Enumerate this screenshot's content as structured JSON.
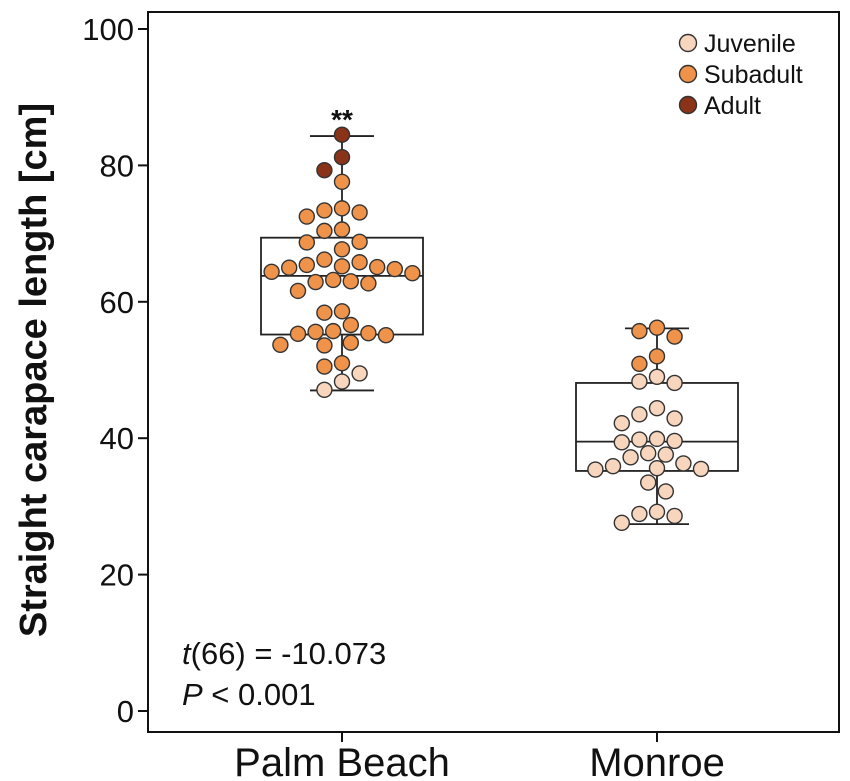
{
  "chart_data": {
    "type": "box",
    "ylabel": "Straight carapace length [cm]",
    "ylim": [
      0,
      100
    ],
    "yticks": [
      0,
      20,
      40,
      60,
      80,
      100
    ],
    "categories": [
      "Palm Beach",
      "Monroe"
    ],
    "stage_colors": {
      "Juvenile": "#f8d5bd",
      "Subadult": "#ef934a",
      "Adult": "#8a3318"
    },
    "legend": [
      {
        "label": "Juvenile",
        "stage": "Juvenile"
      },
      {
        "label": "Subadult",
        "stage": "Subadult"
      },
      {
        "label": "Adult",
        "stage": "Adult"
      }
    ],
    "boxes": [
      {
        "category": "Palm Beach",
        "whisker_low": 47.0,
        "q1": 55.2,
        "median": 63.8,
        "q3": 69.4,
        "whisker_high": 84.3,
        "significance": "**",
        "points": [
          {
            "y": 84.5,
            "stage": "Adult"
          },
          {
            "y": 81.2,
            "stage": "Adult"
          },
          {
            "y": 79.3,
            "stage": "Adult"
          },
          {
            "y": 77.6,
            "stage": "Subadult"
          },
          {
            "y": 73.7,
            "stage": "Subadult"
          },
          {
            "y": 73.4,
            "stage": "Subadult"
          },
          {
            "y": 73.1,
            "stage": "Subadult"
          },
          {
            "y": 72.5,
            "stage": "Subadult"
          },
          {
            "y": 70.6,
            "stage": "Subadult"
          },
          {
            "y": 70.4,
            "stage": "Subadult"
          },
          {
            "y": 68.8,
            "stage": "Subadult"
          },
          {
            "y": 68.7,
            "stage": "Subadult"
          },
          {
            "y": 67.7,
            "stage": "Subadult"
          },
          {
            "y": 66.2,
            "stage": "Subadult"
          },
          {
            "y": 65.8,
            "stage": "Subadult"
          },
          {
            "y": 65.4,
            "stage": "Subadult"
          },
          {
            "y": 65.2,
            "stage": "Subadult"
          },
          {
            "y": 65.1,
            "stage": "Subadult"
          },
          {
            "y": 65.0,
            "stage": "Subadult"
          },
          {
            "y": 64.8,
            "stage": "Subadult"
          },
          {
            "y": 64.4,
            "stage": "Subadult"
          },
          {
            "y": 64.2,
            "stage": "Subadult"
          },
          {
            "y": 63.2,
            "stage": "Subadult"
          },
          {
            "y": 63.0,
            "stage": "Subadult"
          },
          {
            "y": 62.9,
            "stage": "Subadult"
          },
          {
            "y": 62.7,
            "stage": "Subadult"
          },
          {
            "y": 61.6,
            "stage": "Subadult"
          },
          {
            "y": 58.6,
            "stage": "Subadult"
          },
          {
            "y": 58.4,
            "stage": "Subadult"
          },
          {
            "y": 56.6,
            "stage": "Subadult"
          },
          {
            "y": 55.7,
            "stage": "Subadult"
          },
          {
            "y": 55.6,
            "stage": "Subadult"
          },
          {
            "y": 55.4,
            "stage": "Subadult"
          },
          {
            "y": 55.3,
            "stage": "Subadult"
          },
          {
            "y": 55.1,
            "stage": "Subadult"
          },
          {
            "y": 54.0,
            "stage": "Subadult"
          },
          {
            "y": 53.7,
            "stage": "Subadult"
          },
          {
            "y": 53.6,
            "stage": "Subadult"
          },
          {
            "y": 51.0,
            "stage": "Subadult"
          },
          {
            "y": 50.5,
            "stage": "Subadult"
          },
          {
            "y": 49.5,
            "stage": "Juvenile"
          },
          {
            "y": 48.3,
            "stage": "Juvenile"
          },
          {
            "y": 47.1,
            "stage": "Juvenile"
          }
        ]
      },
      {
        "category": "Monroe",
        "whisker_low": 27.4,
        "q1": 35.2,
        "median": 39.5,
        "q3": 48.1,
        "whisker_high": 56.1,
        "points": [
          {
            "y": 56.2,
            "stage": "Subadult"
          },
          {
            "y": 55.7,
            "stage": "Subadult"
          },
          {
            "y": 54.9,
            "stage": "Subadult"
          },
          {
            "y": 52.0,
            "stage": "Subadult"
          },
          {
            "y": 50.9,
            "stage": "Subadult"
          },
          {
            "y": 49.0,
            "stage": "Juvenile"
          },
          {
            "y": 48.3,
            "stage": "Juvenile"
          },
          {
            "y": 48.1,
            "stage": "Juvenile"
          },
          {
            "y": 44.4,
            "stage": "Juvenile"
          },
          {
            "y": 43.5,
            "stage": "Juvenile"
          },
          {
            "y": 42.9,
            "stage": "Juvenile"
          },
          {
            "y": 42.2,
            "stage": "Juvenile"
          },
          {
            "y": 39.9,
            "stage": "Juvenile"
          },
          {
            "y": 39.8,
            "stage": "Juvenile"
          },
          {
            "y": 39.6,
            "stage": "Juvenile"
          },
          {
            "y": 39.4,
            "stage": "Juvenile"
          },
          {
            "y": 37.8,
            "stage": "Juvenile"
          },
          {
            "y": 37.6,
            "stage": "Juvenile"
          },
          {
            "y": 37.2,
            "stage": "Juvenile"
          },
          {
            "y": 36.3,
            "stage": "Juvenile"
          },
          {
            "y": 35.9,
            "stage": "Juvenile"
          },
          {
            "y": 35.6,
            "stage": "Juvenile"
          },
          {
            "y": 35.5,
            "stage": "Juvenile"
          },
          {
            "y": 35.4,
            "stage": "Juvenile"
          },
          {
            "y": 33.5,
            "stage": "Juvenile"
          },
          {
            "y": 32.2,
            "stage": "Juvenile"
          },
          {
            "y": 29.2,
            "stage": "Juvenile"
          },
          {
            "y": 28.9,
            "stage": "Juvenile"
          },
          {
            "y": 28.6,
            "stage": "Juvenile"
          },
          {
            "y": 27.6,
            "stage": "Juvenile"
          }
        ]
      }
    ],
    "annotations": {
      "t_italic": "t",
      "t_rest": "(66) = -10.073",
      "p_italic": "P",
      "p_rest": " < 0.001"
    }
  }
}
